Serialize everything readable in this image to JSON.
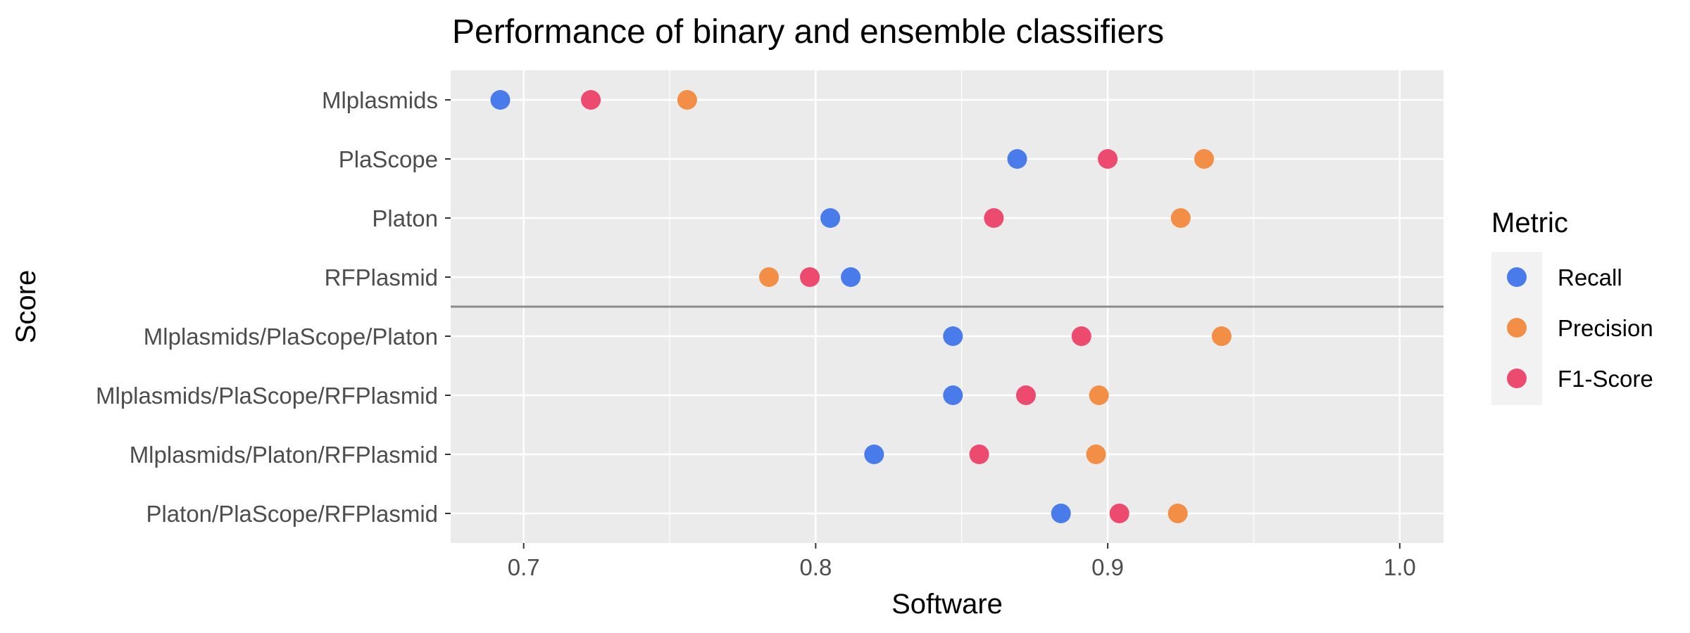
{
  "chart_data": {
    "type": "scatter",
    "title": "Performance of binary and ensemble classifiers",
    "xlabel": "Software",
    "ylabel": "Score",
    "xlim": [
      0.675,
      1.015
    ],
    "x_ticks": [
      0.7,
      0.8,
      0.9,
      1.0
    ],
    "x_tick_labels": [
      "0.7",
      "0.8",
      "0.9",
      "1.0"
    ],
    "categories": [
      "Mlplasmids",
      "PlaScope",
      "Platon",
      "RFPlasmid",
      "Mlplasmids/PlaScope/Platon",
      "Mlplasmids/PlaScope/RFPlasmid",
      "Mlplasmids/Platon/RFPlasmid",
      "Platon/PlaScope/RFPlasmid"
    ],
    "separator_after_category": "RFPlasmid",
    "grid": true,
    "legend": {
      "title": "Metric",
      "position": "right"
    },
    "series": [
      {
        "name": "Recall",
        "color": "#4a7bea",
        "values": [
          0.692,
          0.869,
          0.805,
          0.812,
          0.847,
          0.847,
          0.82,
          0.884
        ]
      },
      {
        "name": "Precision",
        "color": "#f28e45",
        "values": [
          0.756,
          0.933,
          0.925,
          0.784,
          0.939,
          0.897,
          0.896,
          0.924
        ]
      },
      {
        "name": "F1-Score",
        "color": "#ec4a6e",
        "values": [
          0.723,
          0.9,
          0.861,
          0.798,
          0.891,
          0.872,
          0.856,
          0.904
        ]
      }
    ]
  }
}
